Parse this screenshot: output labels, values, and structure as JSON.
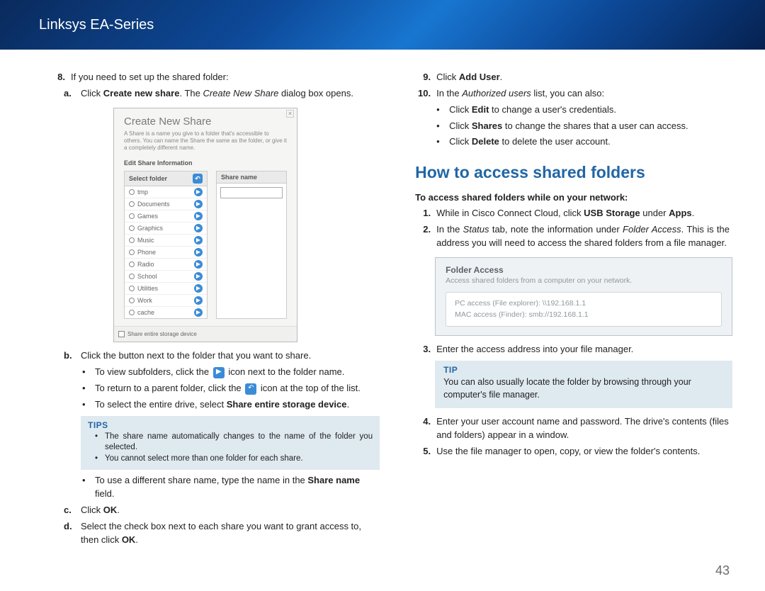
{
  "header": {
    "title": "Linksys EA-Series"
  },
  "left": {
    "step8": {
      "num": "8.",
      "text": "If you need to set up the shared folder:"
    },
    "step8a": {
      "letter": "a.",
      "pre": "Click ",
      "bold": "Create new share",
      "mid": ". The ",
      "ital": "Create New Share",
      "post": " dialog box opens."
    },
    "dialog": {
      "title": "Create New Share",
      "desc": "A Share is a name you give to a folder that's accessible to others. You can name the Share the same as the folder, or give it a completely different name.",
      "editLabel": "Edit Share Information",
      "selectFolder": "Select folder",
      "shareName": "Share name",
      "folders": [
        "tmp",
        "Documents",
        "Games",
        "Graphics",
        "Music",
        "Phone",
        "Radio",
        "School",
        "Utilities",
        "Work",
        "cache"
      ],
      "checkbox": "Share entire storage device"
    },
    "step8b": {
      "letter": "b.",
      "text": "Click the button next to the folder that you want to share."
    },
    "step8b1": "To view subfolders, click the ",
    "step8b1post": " icon next to the folder name.",
    "step8b2": "To return to a parent folder, click the ",
    "step8b2post": " icon at the top of the list.",
    "step8b3pre": "To select the entire drive, select ",
    "step8b3bold": "Share entire storage device",
    "step8b3post": ".",
    "tips": {
      "title": "TIPS",
      "t1": "The share name automatically changes to the name of the folder you selected.",
      "t2": "You cannot select more than one folder for each share."
    },
    "step8b4pre": "To use a different share name, type the name in the ",
    "step8b4bold": "Share name",
    "step8b4post": " field.",
    "step8c": {
      "letter": "c.",
      "pre": "Click ",
      "bold": "OK",
      "post": "."
    },
    "step8d": {
      "letter": "d.",
      "pre": "Select the check box next to each share you want to grant access to, then click ",
      "bold": "OK",
      "post": "."
    }
  },
  "right": {
    "step9": {
      "num": "9.",
      "pre": "Click ",
      "bold": "Add User",
      "post": "."
    },
    "step10": {
      "num": "10.",
      "pre": "In the ",
      "ital": "Authorized users",
      "post": " list, you can also:"
    },
    "step10a": {
      "pre": "Click ",
      "bold": "Edit",
      "post": " to change a user's credentials."
    },
    "step10b": {
      "pre": "Click ",
      "bold": "Shares",
      "post": " to change the shares that a user can access."
    },
    "step10c": {
      "pre": "Click ",
      "bold": "Delete",
      "post": " to delete the user account."
    },
    "h2": "How to access shared folders",
    "lead": "To access shared folders while on your network:",
    "s1": {
      "num": "1.",
      "pre": "While in Cisco Connect Cloud, click ",
      "bold": "USB Storage",
      "mid": " under ",
      "bold2": "Apps",
      "post": "."
    },
    "s2": {
      "num": "2.",
      "pre": "In the ",
      "ital": "Status",
      "mid": " tab, note the information under ",
      "ital2": "Folder Access",
      "post": ". This is the address you will need to access the shared folders from a file manager."
    },
    "fa": {
      "title": "Folder Access",
      "sub": "Access shared folders from a computer on your network.",
      "pc": "PC access (File explorer): \\\\192.168.1.1",
      "mac": "MAC access (Finder): smb://192.168.1.1"
    },
    "s3": {
      "num": "3.",
      "text": "Enter the access address into your file manager."
    },
    "tip": {
      "title": "TIP",
      "body": "You can also usually locate the folder by browsing through your computer's file manager."
    },
    "s4": {
      "num": "4.",
      "text": "Enter your user account name and password. The drive's contents (files and folders) appear in a window."
    },
    "s5": {
      "num": "5.",
      "text": "Use the file manager to open, copy, or view the folder's contents."
    }
  },
  "pageNum": "43"
}
